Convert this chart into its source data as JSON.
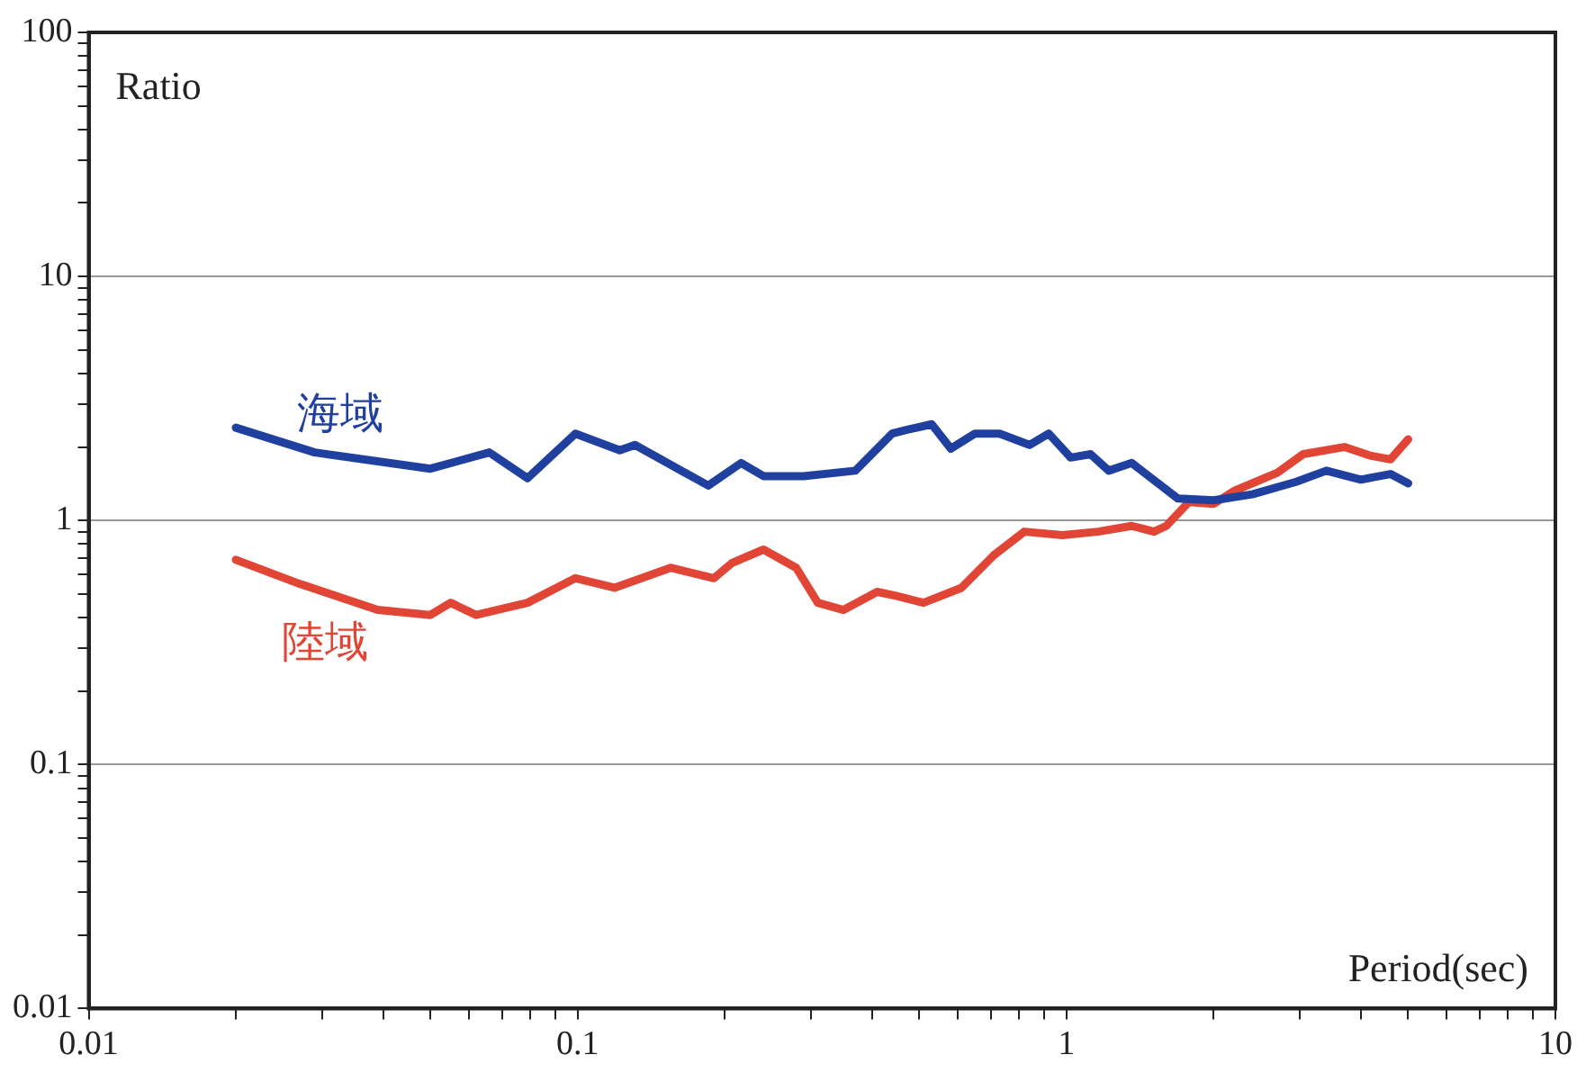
{
  "chart_data": {
    "type": "line",
    "xlabel": "Period(sec)",
    "ylabel": "Ratio",
    "log": "xy",
    "grid": "y",
    "legend": false,
    "marker": "none",
    "line_style": "solid",
    "xlim": [
      0.01,
      10
    ],
    "ylim": [
      0.01,
      100
    ],
    "xticks": [
      0.01,
      {
        "value": 0.02,
        "label": null
      },
      {
        "value": 0.03,
        "label": null
      },
      {
        "value": 0.04,
        "label": null
      },
      {
        "value": 0.05,
        "label": null
      },
      {
        "value": 0.06,
        "label": null
      },
      {
        "value": 0.07,
        "label": null
      },
      {
        "value": 0.08,
        "label": null
      },
      {
        "value": 0.09,
        "label": null
      },
      0.1,
      {
        "value": 0.2,
        "label": null
      },
      {
        "value": 0.3,
        "label": null
      },
      {
        "value": 0.4,
        "label": null
      },
      {
        "value": 0.5,
        "label": null
      },
      {
        "value": 0.6,
        "label": null
      },
      {
        "value": 0.7,
        "label": null
      },
      {
        "value": 0.8,
        "label": null
      },
      {
        "value": 0.9,
        "label": null
      },
      1,
      {
        "value": 2,
        "label": null
      },
      {
        "value": 3,
        "label": null
      },
      {
        "value": 4,
        "label": null
      },
      {
        "value": 5,
        "label": null
      },
      {
        "value": 6,
        "label": null
      },
      {
        "value": 7,
        "label": null
      },
      {
        "value": 8,
        "label": null
      },
      {
        "value": 9,
        "label": null
      },
      10
    ],
    "yticks": [
      0.01,
      {
        "value": 0.02,
        "label": null
      },
      {
        "value": 0.03,
        "label": null
      },
      {
        "value": 0.04,
        "label": null
      },
      {
        "value": 0.05,
        "label": null
      },
      {
        "value": 0.06,
        "label": null
      },
      {
        "value": 0.07,
        "label": null
      },
      {
        "value": 0.08,
        "label": null
      },
      {
        "value": 0.09,
        "label": null
      },
      0.1,
      {
        "value": 0.2,
        "label": null
      },
      {
        "value": 0.3,
        "label": null
      },
      {
        "value": 0.4,
        "label": null
      },
      {
        "value": 0.5,
        "label": null
      },
      {
        "value": 0.6,
        "label": null
      },
      {
        "value": 0.7,
        "label": null
      },
      {
        "value": 0.8,
        "label": null
      },
      {
        "value": 0.9,
        "label": null
      },
      1,
      {
        "value": 2,
        "label": null
      },
      {
        "value": 3,
        "label": null
      },
      {
        "value": 4,
        "label": null
      },
      {
        "value": 5,
        "label": null
      },
      {
        "value": 6,
        "label": null
      },
      {
        "value": 7,
        "label": null
      },
      {
        "value": 8,
        "label": null
      },
      {
        "value": 9,
        "label": null
      },
      10,
      {
        "value": 20,
        "label": null
      },
      {
        "value": 30,
        "label": null
      },
      {
        "value": 40,
        "label": null
      },
      {
        "value": 50,
        "label": null
      },
      {
        "value": 60,
        "label": null
      },
      {
        "value": 70,
        "label": null
      },
      {
        "value": 80,
        "label": null
      },
      {
        "value": 90,
        "label": null
      },
      100
    ],
    "series": [
      {
        "name": "海域",
        "color": "#2040a0",
        "x": [
          0.02,
          0.029,
          0.05,
          0.066,
          0.079,
          0.099,
          0.122,
          0.131,
          0.185,
          0.216,
          0.24,
          0.29,
          0.37,
          0.44,
          0.47,
          0.53,
          0.58,
          0.65,
          0.73,
          0.84,
          0.92,
          1.02,
          1.12,
          1.22,
          1.36,
          1.69,
          2.0,
          2.4,
          2.95,
          3.4,
          4.0,
          4.6,
          5.0
        ],
        "values": [
          2.4,
          1.9,
          1.63,
          1.9,
          1.49,
          2.27,
          1.94,
          2.04,
          1.39,
          1.72,
          1.52,
          1.52,
          1.6,
          2.27,
          2.35,
          2.48,
          1.97,
          2.27,
          2.27,
          2.04,
          2.27,
          1.81,
          1.87,
          1.6,
          1.72,
          1.23,
          1.21,
          1.28,
          1.44,
          1.6,
          1.47,
          1.55,
          1.42
        ]
      },
      {
        "name": "陸域",
        "color": "#e04535",
        "x": [
          0.02,
          0.027,
          0.039,
          0.05,
          0.055,
          0.062,
          0.079,
          0.099,
          0.119,
          0.155,
          0.19,
          0.207,
          0.24,
          0.28,
          0.31,
          0.35,
          0.41,
          0.45,
          0.51,
          0.61,
          0.71,
          0.82,
          0.98,
          1.16,
          1.36,
          1.51,
          1.6,
          1.78,
          2.0,
          2.2,
          2.7,
          3.05,
          3.7,
          4.2,
          4.6,
          5.0
        ],
        "values": [
          0.69,
          0.55,
          0.43,
          0.41,
          0.46,
          0.41,
          0.46,
          0.58,
          0.53,
          0.64,
          0.58,
          0.67,
          0.76,
          0.64,
          0.46,
          0.43,
          0.51,
          0.49,
          0.46,
          0.53,
          0.72,
          0.9,
          0.87,
          0.9,
          0.95,
          0.9,
          0.95,
          1.19,
          1.17,
          1.32,
          1.57,
          1.87,
          2.0,
          1.84,
          1.78,
          2.15
        ]
      }
    ]
  }
}
